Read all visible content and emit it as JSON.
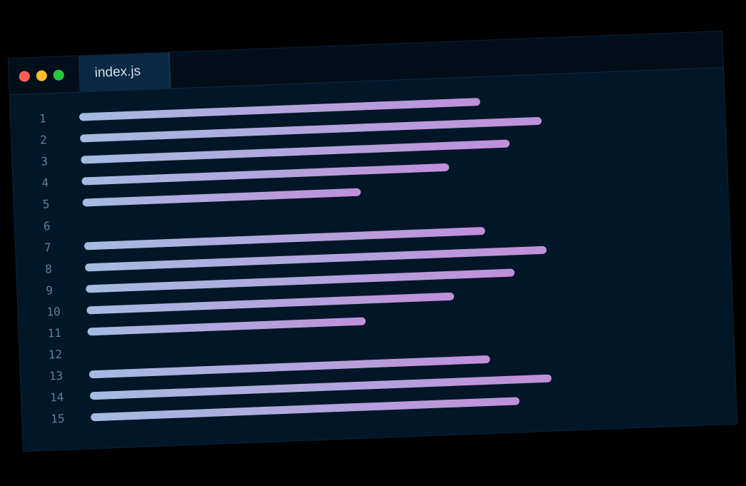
{
  "window": {
    "dot_colors": [
      "#ff5f57",
      "#febc2e",
      "#28c840"
    ],
    "tab_label": "index.js"
  },
  "editor": {
    "lines": [
      {
        "number": "1",
        "fill": 0.72
      },
      {
        "number": "2",
        "fill": 0.83
      },
      {
        "number": "3",
        "fill": 0.77
      },
      {
        "number": "4",
        "fill": 0.66
      },
      {
        "number": "5",
        "fill": 0.5
      },
      {
        "number": "6",
        "fill": 0
      },
      {
        "number": "7",
        "fill": 0.72
      },
      {
        "number": "8",
        "fill": 0.83
      },
      {
        "number": "9",
        "fill": 0.77
      },
      {
        "number": "10",
        "fill": 0.66
      },
      {
        "number": "11",
        "fill": 0.5
      },
      {
        "number": "12",
        "fill": 0
      },
      {
        "number": "13",
        "fill": 0.72
      },
      {
        "number": "14",
        "fill": 0.83
      },
      {
        "number": "15",
        "fill": 0.77
      }
    ]
  }
}
